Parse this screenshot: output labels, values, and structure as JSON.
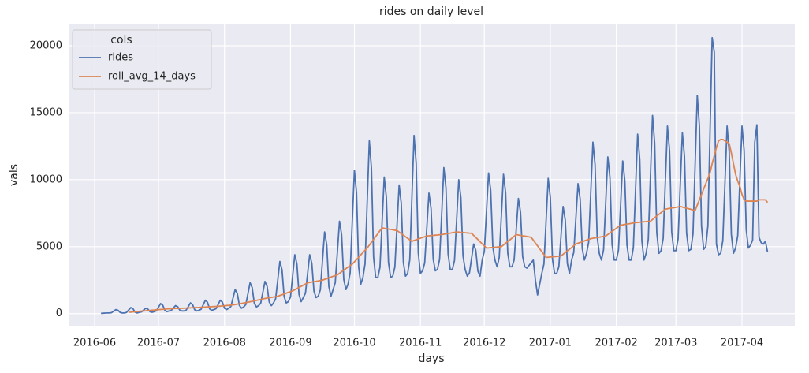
{
  "chart_data": {
    "type": "line",
    "title": "rides on daily level",
    "x_label": "days",
    "y_label": "vals",
    "legend": {
      "title": "cols",
      "corner": "upper left"
    },
    "grid": true,
    "ylim": [
      -900,
      21650
    ],
    "yticks": [
      0,
      5000,
      10000,
      15000,
      20000
    ],
    "categories": [
      "2016-06",
      null,
      null,
      null,
      null,
      null,
      null,
      null,
      null,
      null,
      null,
      null,
      null,
      null,
      null,
      null,
      null,
      null,
      null,
      null,
      null,
      null,
      null,
      null,
      null,
      null,
      null,
      null,
      null,
      null,
      "2016-07",
      null,
      null,
      null,
      null,
      null,
      null,
      null,
      null,
      null,
      null,
      null,
      null,
      null,
      null,
      null,
      null,
      null,
      null,
      null,
      null,
      null,
      null,
      null,
      null,
      null,
      null,
      null,
      null,
      null,
      null,
      "2016-08",
      null,
      null,
      null,
      null,
      null,
      null,
      null,
      null,
      null,
      null,
      null,
      null,
      null,
      null,
      null,
      null,
      null,
      null,
      null,
      null,
      null,
      null,
      null,
      null,
      null,
      null,
      null,
      null,
      null,
      null,
      "2016-09",
      null,
      null,
      null,
      null,
      null,
      null,
      null,
      null,
      null,
      null,
      null,
      null,
      null,
      null,
      null,
      null,
      null,
      null,
      null,
      null,
      null,
      null,
      null,
      null,
      null,
      null,
      null,
      null,
      null,
      "2016-10",
      null,
      null,
      null,
      null,
      null,
      null,
      null,
      null,
      null,
      null,
      null,
      null,
      null,
      null,
      null,
      null,
      null,
      null,
      null,
      null,
      null,
      null,
      null,
      null,
      null,
      null,
      null,
      null,
      null,
      null,
      "2016-11",
      null,
      null,
      null,
      null,
      null,
      null,
      null,
      null,
      null,
      null,
      null,
      null,
      null,
      null,
      null,
      null,
      null,
      null,
      null,
      null,
      null,
      null,
      null,
      null,
      null,
      null,
      null,
      null,
      null,
      "2016-12",
      null,
      null,
      null,
      null,
      null,
      null,
      null,
      null,
      null,
      null,
      null,
      null,
      null,
      null,
      null,
      null,
      null,
      null,
      null,
      null,
      null,
      null,
      null,
      null,
      null,
      null,
      null,
      null,
      null,
      null,
      "2017-01",
      null,
      null,
      null,
      null,
      null,
      null,
      null,
      null,
      null,
      null,
      null,
      null,
      null,
      null,
      null,
      null,
      null,
      null,
      null,
      null,
      null,
      null,
      null,
      null,
      null,
      null,
      null,
      null,
      null,
      null,
      "2017-02",
      null,
      null,
      null,
      null,
      null,
      null,
      null,
      null,
      null,
      null,
      null,
      null,
      null,
      null,
      null,
      null,
      null,
      null,
      null,
      null,
      null,
      null,
      null,
      null,
      null,
      null,
      null,
      "2017-03",
      null,
      null,
      null,
      null,
      null,
      null,
      null,
      null,
      null,
      null,
      null,
      null,
      null,
      null,
      null,
      null,
      null,
      null,
      null,
      null,
      null,
      null,
      null,
      null,
      null,
      null,
      null,
      null,
      null,
      null,
      "2017-04",
      null,
      null,
      null,
      null,
      null,
      null,
      null,
      null,
      null,
      null,
      null,
      null
    ],
    "series": [
      {
        "name": "rides",
        "color": "#4c72b0",
        "values": [
          null,
          null,
          null,
          20,
          30,
          40,
          50,
          50,
          75,
          190,
          300,
          250,
          90,
          50,
          50,
          90,
          270,
          450,
          370,
          110,
          50,
          100,
          130,
          265,
          400,
          340,
          145,
          100,
          150,
          210,
          480,
          750,
          630,
          240,
          150,
          200,
          240,
          420,
          600,
          520,
          260,
          200,
          200,
          260,
          530,
          800,
          680,
          290,
          200,
          250,
          325,
          660,
          1000,
          850,
          360,
          250,
          300,
          370,
          685,
          1000,
          860,
          405,
          300,
          400,
          540,
          1170,
          1800,
          1520,
          610,
          400,
          500,
          680,
          1490,
          2300,
          1940,
          770,
          500,
          600,
          780,
          1590,
          2400,
          2040,
          870,
          600,
          800,
          1110,
          2505,
          3900,
          3280,
          1265,
          800,
          900,
          1250,
          2825,
          4400,
          3700,
          1425,
          900,
          1200,
          1520,
          2960,
          4400,
          3760,
          1680,
          1200,
          1300,
          1780,
          3940,
          6100,
          5140,
          2020,
          1300,
          1800,
          2310,
          4605,
          6900,
          5880,
          2565,
          1800,
          2200,
          3050,
          6875,
          10700,
          9000,
          3475,
          2200,
          2700,
          3720,
          8310,
          12900,
          10860,
          4230,
          2700,
          2700,
          3450,
          6825,
          10200,
          8700,
          3825,
          2700,
          2800,
          3480,
          6540,
          9600,
          8240,
          3820,
          2800,
          3000,
          4030,
          8665,
          13300,
          11240,
          4545,
          3000,
          3200,
          3780,
          6390,
          9000,
          7840,
          4070,
          3200,
          3300,
          4060,
          7480,
          10900,
          9380,
          4440,
          3300,
          3300,
          3970,
          6985,
          10000,
          8660,
          4305,
          3300,
          2800,
          3040,
          4120,
          5200,
          4720,
          3160,
          2800,
          4000,
          4650,
          7575,
          10500,
          9200,
          4975,
          4000,
          3500,
          4190,
          7295,
          10400,
          9020,
          4535,
          3500,
          3500,
          4010,
          6305,
          8600,
          7580,
          4265,
          3500,
          3400,
          3600,
          3800,
          4000,
          2500,
          1400,
          2200,
          3000,
          3710,
          6905,
          10100,
          8680,
          4065,
          3000,
          3000,
          3500,
          5750,
          8000,
          7000,
          3750,
          3000,
          4000,
          4570,
          7135,
          9700,
          8560,
          4855,
          4000,
          4500,
          5330,
          9065,
          12800,
          11140,
          5745,
          4500,
          4000,
          4770,
          8235,
          11700,
          10160,
          5155,
          4000,
          4000,
          4740,
          8070,
          11400,
          9920,
          5110,
          4000,
          4000,
          4940,
          9170,
          13400,
          11520,
          5410,
          4000,
          4500,
          5530,
          10165,
          14800,
          12740,
          6045,
          4500,
          4700,
          5630,
          9815,
          14000,
          12140,
          6095,
          4700,
          4700,
          5580,
          9540,
          13500,
          11740,
          6020,
          4700,
          4800,
          5950,
          11125,
          16300,
          14000,
          6525,
          4800,
          5000,
          6560,
          13580,
          20600,
          19500,
          5200,
          4400,
          4500,
          5450,
          9725,
          14000,
          12100,
          5925,
          4500,
          4900,
          5810,
          9905,
          14000,
          12180,
          6265,
          4900,
          5100,
          5500,
          12800,
          14100,
          5700,
          5300,
          5200,
          5400,
          4600
        ]
      },
      {
        "name": "roll_avg_14_days",
        "color": "#dd8452",
        "values": [
          null,
          null,
          null,
          null,
          null,
          null,
          null,
          null,
          null,
          null,
          null,
          null,
          null,
          null,
          null,
          null,
          100,
          110,
          130,
          140,
          160,
          170,
          190,
          200,
          210,
          230,
          240,
          260,
          270,
          290,
          300,
          310,
          320,
          330,
          350,
          360,
          370,
          380,
          390,
          390,
          400,
          400,
          410,
          410,
          420,
          430,
          440,
          450,
          450,
          460,
          470,
          480,
          490,
          500,
          510,
          520,
          530,
          540,
          550,
          560,
          580,
          590,
          610,
          620,
          640,
          650,
          680,
          710,
          740,
          760,
          790,
          820,
          850,
          890,
          920,
          960,
          990,
          1030,
          1060,
          1100,
          1130,
          1160,
          1190,
          1210,
          1240,
          1270,
          1300,
          1360,
          1410,
          1470,
          1530,
          1590,
          1640,
          1700,
          1790,
          1870,
          1960,
          2040,
          2130,
          2210,
          2300,
          2330,
          2360,
          2390,
          2410,
          2440,
          2470,
          2500,
          2560,
          2610,
          2670,
          2730,
          2790,
          2840,
          2900,
          3010,
          3130,
          3240,
          3360,
          3470,
          3590,
          3700,
          3870,
          4040,
          4210,
          4390,
          4560,
          4730,
          4900,
          5110,
          5330,
          5540,
          5760,
          5970,
          6190,
          6400,
          6370,
          6340,
          6310,
          6290,
          6260,
          6230,
          6200,
          6090,
          5970,
          5860,
          5740,
          5630,
          5510,
          5400,
          5460,
          5510,
          5570,
          5630,
          5690,
          5740,
          5800,
          5810,
          5830,
          5840,
          5860,
          5870,
          5890,
          5900,
          5930,
          5960,
          5990,
          6010,
          6040,
          6070,
          6100,
          6090,
          6070,
          6060,
          6040,
          6030,
          6010,
          6000,
          5840,
          5690,
          5530,
          5370,
          5210,
          5060,
          4900,
          4910,
          4930,
          4940,
          4960,
          4970,
          4990,
          5000,
          5130,
          5260,
          5390,
          5510,
          5640,
          5770,
          5900,
          5870,
          5840,
          5810,
          5790,
          5760,
          5730,
          5700,
          5490,
          5270,
          5060,
          4840,
          4630,
          4410,
          4200,
          4210,
          4230,
          4240,
          4260,
          4270,
          4290,
          4300,
          4430,
          4560,
          4690,
          4810,
          4940,
          5070,
          5200,
          5260,
          5310,
          5370,
          5430,
          5490,
          5540,
          5600,
          5630,
          5660,
          5690,
          5710,
          5740,
          5770,
          5800,
          5910,
          6030,
          6140,
          6260,
          6370,
          6490,
          6600,
          6630,
          6660,
          6690,
          6710,
          6740,
          6770,
          6800,
          6810,
          6830,
          6840,
          6860,
          6870,
          6890,
          6900,
          7030,
          7160,
          7290,
          7410,
          7540,
          7670,
          7800,
          7830,
          7860,
          7890,
          7910,
          7940,
          7970,
          8000,
          7960,
          7910,
          7870,
          7830,
          7790,
          7740,
          7700,
          8100,
          8500,
          8900,
          9300,
          9700,
          10100,
          10500,
          11200,
          11800,
          12400,
          12900,
          13000,
          13000,
          12900,
          12800,
          12700,
          12000,
          11200,
          10400,
          9900,
          9500,
          8900,
          8500,
          8400,
          8400,
          8400,
          8400,
          8400,
          8400,
          8500,
          8500,
          8500,
          8500,
          8300
        ]
      }
    ]
  }
}
